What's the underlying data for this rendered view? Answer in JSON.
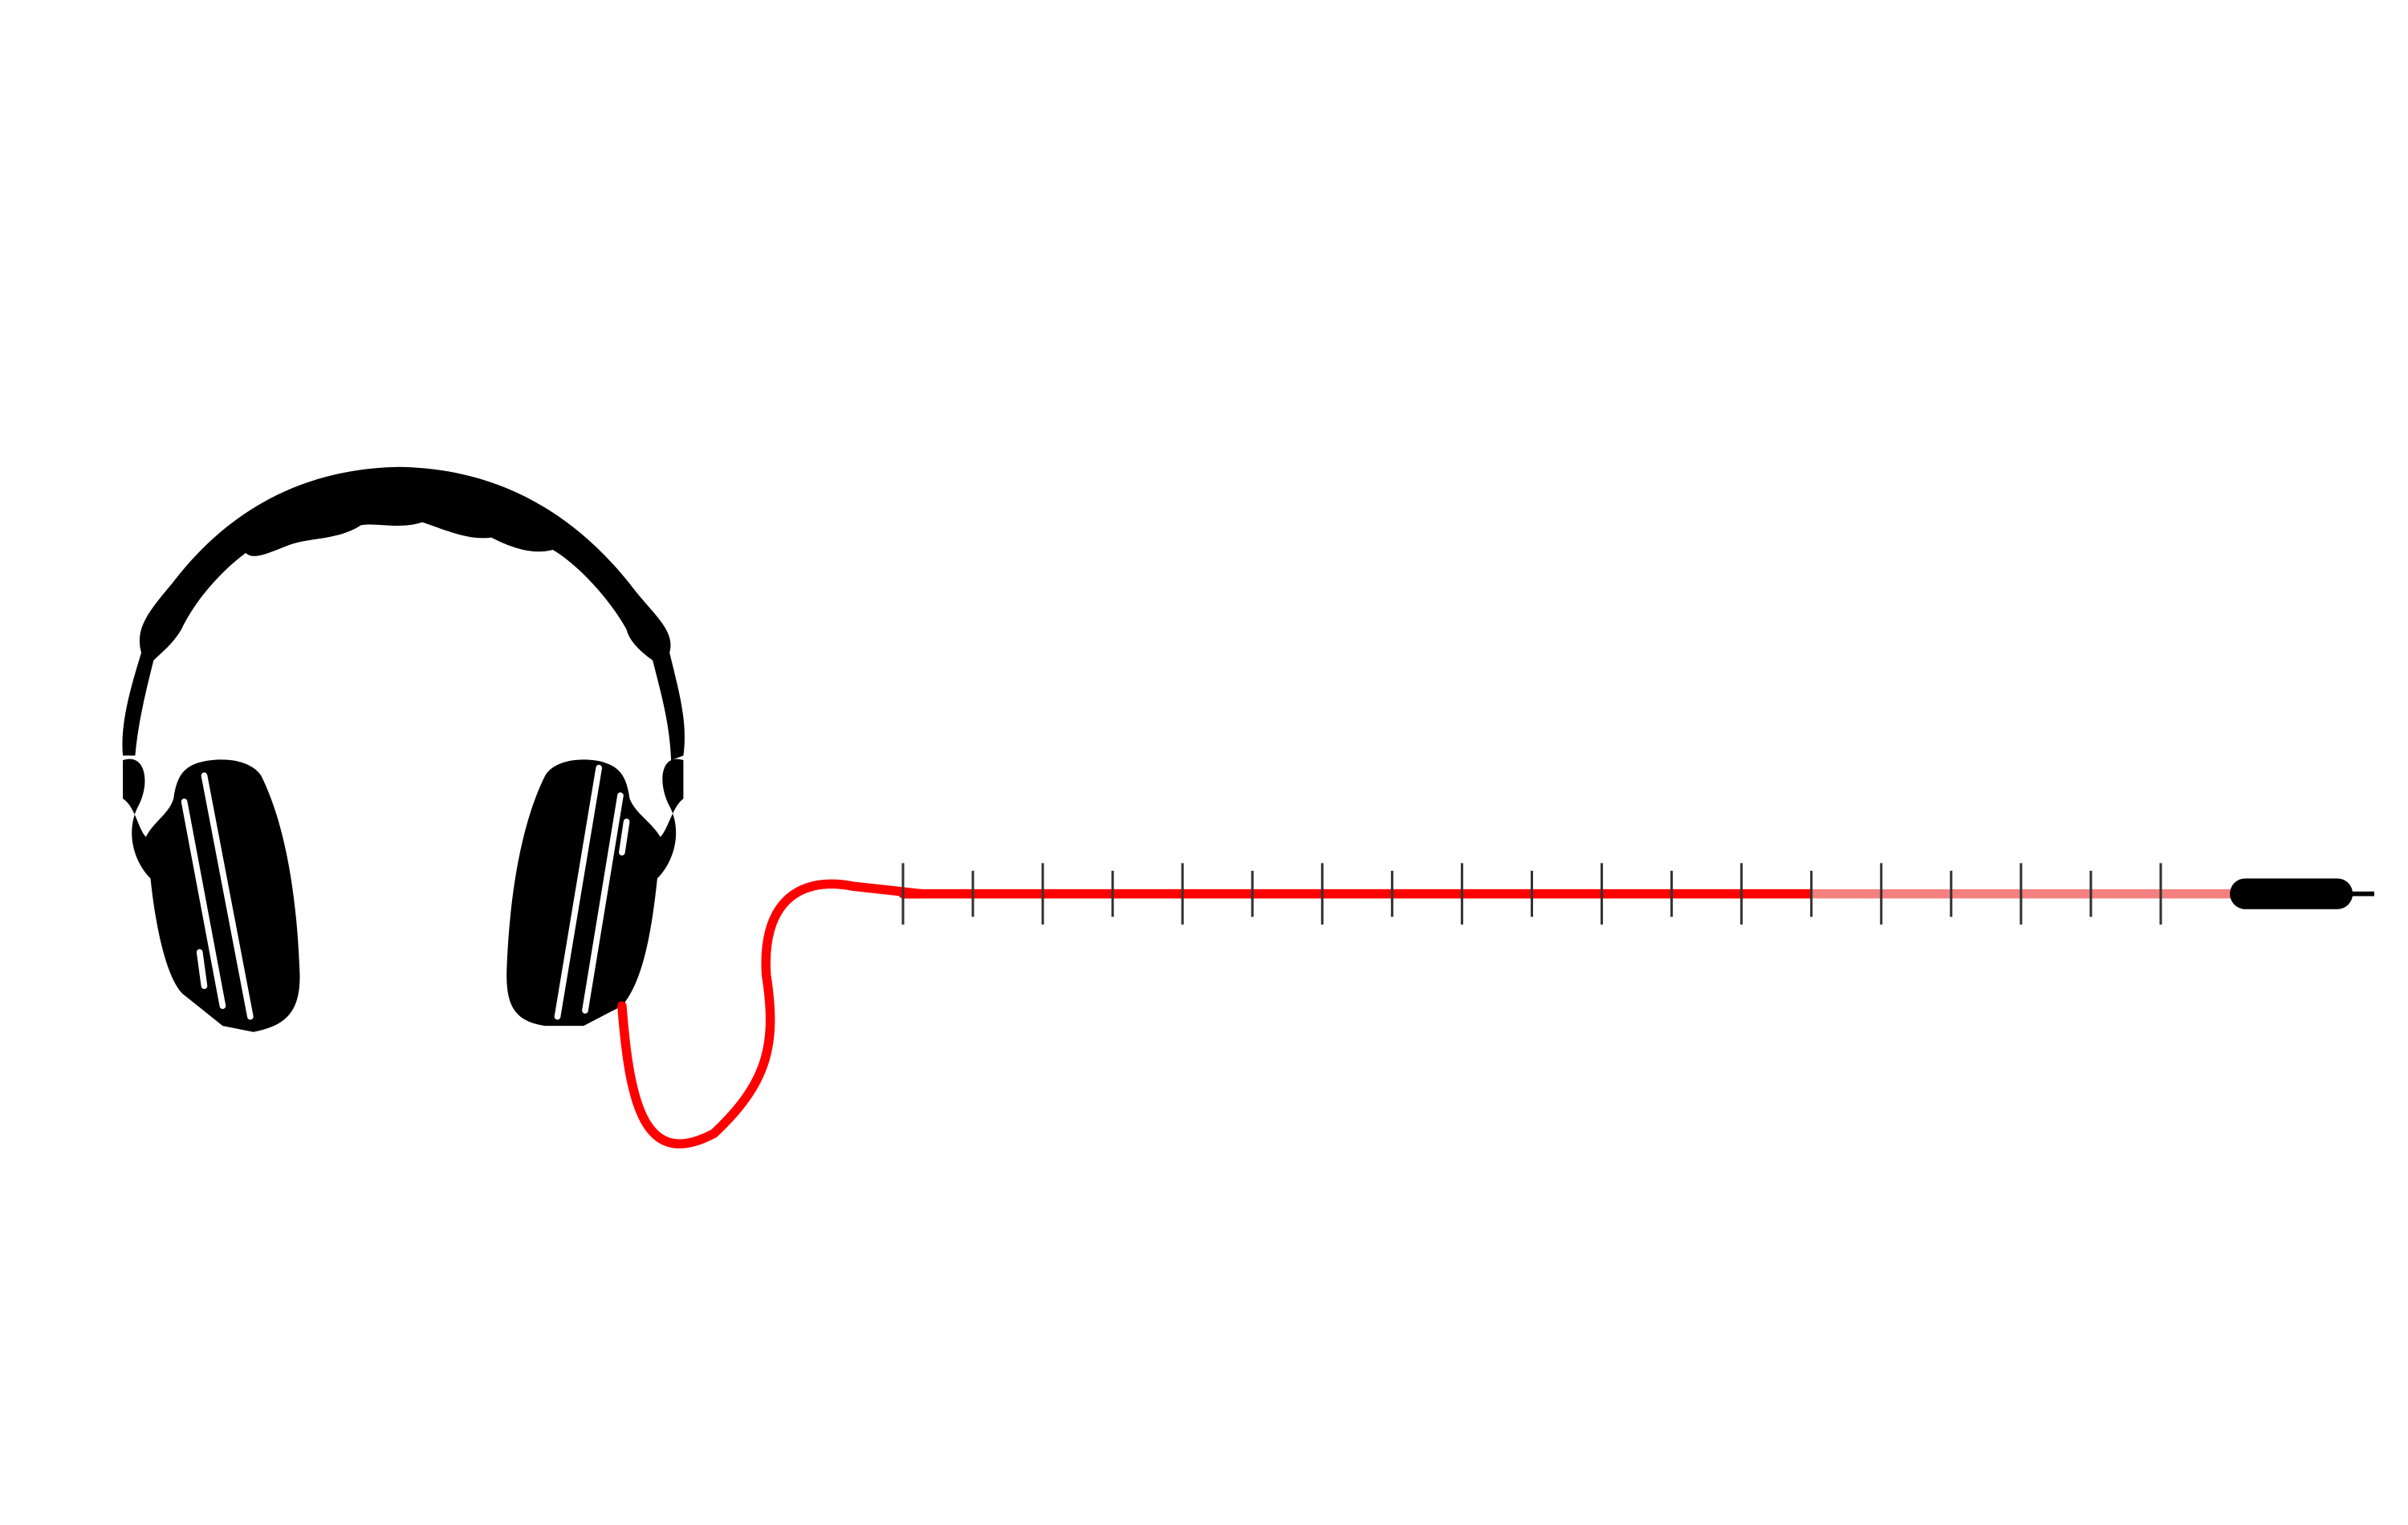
{
  "slider": {
    "min": 0,
    "max": 18,
    "value": 13
  }
}
